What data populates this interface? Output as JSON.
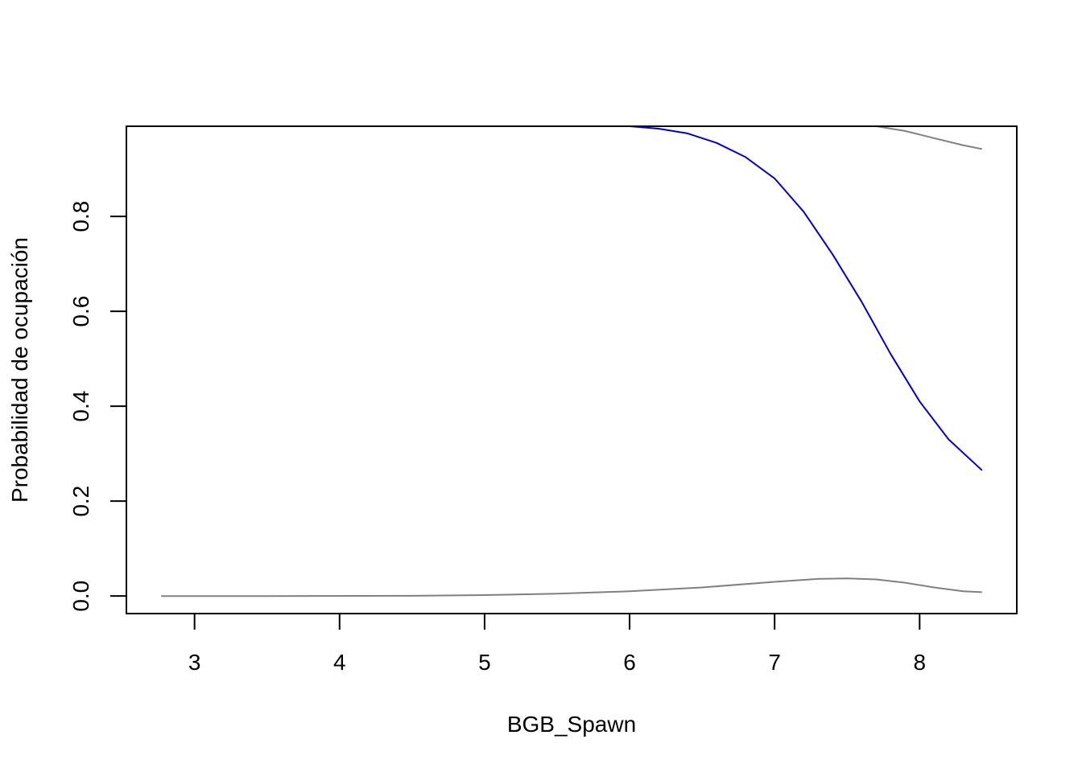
{
  "chart_data": {
    "type": "line",
    "title": "",
    "xlabel": "BGB_Spawn",
    "ylabel": "Probabilidad de ocupación",
    "xlim": [
      2.53,
      8.67
    ],
    "ylim": [
      -0.037,
      0.99
    ],
    "x_ticks": [
      3,
      4,
      5,
      6,
      7,
      8
    ],
    "y_ticks": [
      0.0,
      0.2,
      0.4,
      0.6,
      0.8
    ],
    "y_tick_labels": [
      "0.0",
      "0.2",
      "0.4",
      "0.6",
      "0.8"
    ],
    "x_tick_labels": [
      "3",
      "4",
      "5",
      "6",
      "7",
      "8"
    ],
    "grid": false,
    "series": [
      {
        "role": "estimate",
        "color": "#0000cd",
        "x": [
          2.77,
          3.5,
          4.5,
          5.5,
          6.0,
          6.2,
          6.4,
          6.6,
          6.8,
          7.0,
          7.2,
          7.4,
          7.6,
          7.8,
          8.0,
          8.2,
          8.43
        ],
        "y": [
          1.0,
          1.0,
          1.0,
          1.0,
          0.99,
          0.985,
          0.975,
          0.955,
          0.925,
          0.88,
          0.81,
          0.72,
          0.62,
          0.51,
          0.41,
          0.33,
          0.265
        ]
      },
      {
        "role": "upper-bound",
        "color": "#808080",
        "x": [
          2.77,
          4.0,
          5.0,
          6.0,
          7.0,
          7.7,
          7.9,
          8.1,
          8.3,
          8.43
        ],
        "y": [
          1.0,
          1.0,
          1.0,
          1.0,
          1.0,
          0.99,
          0.98,
          0.965,
          0.95,
          0.942
        ]
      },
      {
        "role": "lower-bound",
        "color": "#808080",
        "x": [
          2.77,
          3.5,
          4.5,
          5.0,
          5.5,
          6.0,
          6.5,
          7.0,
          7.3,
          7.5,
          7.7,
          7.9,
          8.1,
          8.3,
          8.43
        ],
        "y": [
          0.0,
          0.0,
          0.0005,
          0.002,
          0.005,
          0.01,
          0.018,
          0.03,
          0.036,
          0.037,
          0.035,
          0.028,
          0.018,
          0.01,
          0.008
        ]
      }
    ]
  }
}
